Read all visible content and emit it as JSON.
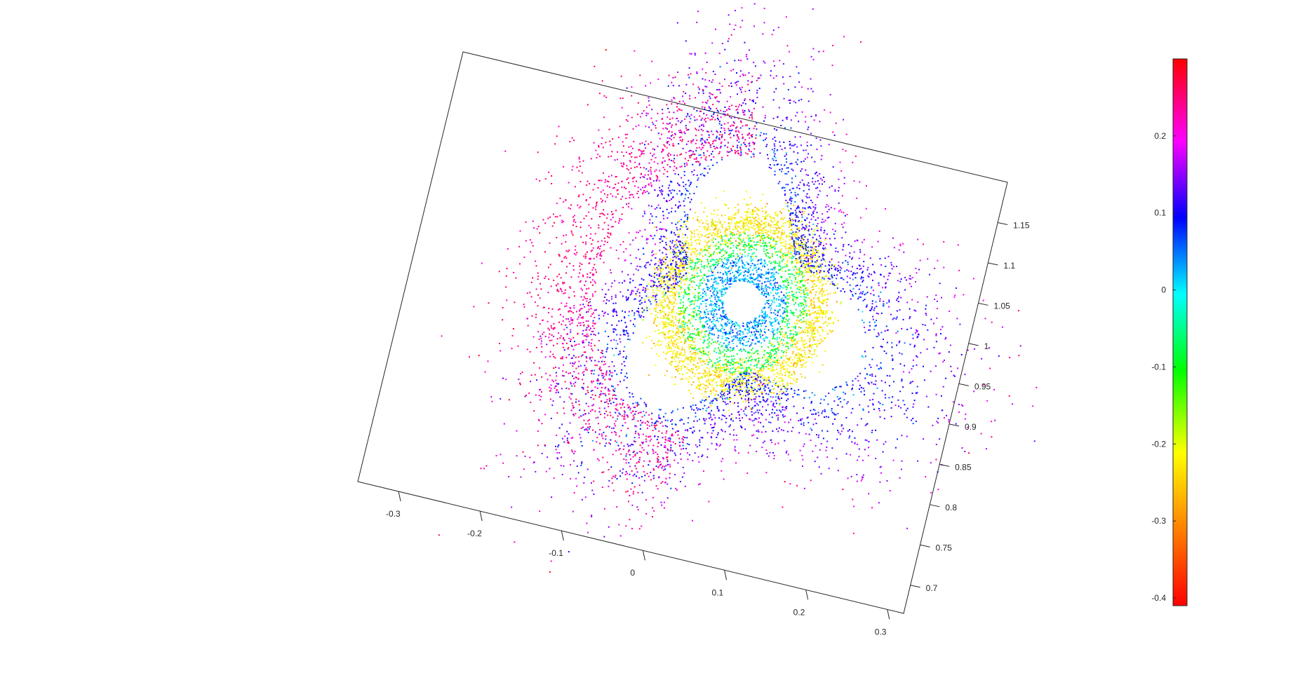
{
  "chart_data": {
    "type": "scatter",
    "title": "",
    "xlabel": "",
    "ylabel": "",
    "xlim": [
      -0.35,
      0.32
    ],
    "ylim": [
      0.665,
      1.2
    ],
    "x_ticks": [
      -0.3,
      -0.2,
      -0.1,
      0,
      0.1,
      0.2,
      0.3
    ],
    "x_tick_labels": [
      "-0.3",
      "-0.2",
      "-0.1",
      "0",
      "0.1",
      "0.2",
      "0.3"
    ],
    "y_ticks": [
      0.7,
      0.75,
      0.8,
      0.85,
      0.9,
      0.95,
      1,
      1.05,
      1.1,
      1.15
    ],
    "y_tick_labels": [
      "0.7",
      "0.75",
      "0.8",
      "0.85",
      "0.9",
      "0.95",
      "1",
      "1.05",
      "1.1",
      "1.15"
    ],
    "grid": false,
    "colormap": "hsv",
    "colorbar": {
      "limits": [
        -0.41,
        0.3
      ],
      "ticks": [
        -0.4,
        -0.3,
        -0.2,
        -0.1,
        0,
        0.1,
        0.2
      ],
      "tick_labels": [
        "-0.4",
        "-0.3",
        "-0.2",
        "-0.1",
        "0",
        "0.1",
        "0.2"
      ],
      "colors": [
        "#ff0000",
        "#ff8000",
        "#ffff00",
        "#00ff00",
        "#00ffff",
        "#0000ff",
        "#ff00ff",
        "#ff0040"
      ]
    },
    "point_cloud": {
      "description_of_structure": "dense magenta ring around a blue core with a hollow center, surrounded by cyan and green lobes, yellow/orange fringes",
      "approx_points": 9000,
      "ring_center": [
        0.045,
        0.985
      ],
      "ring_radius": 0.085,
      "ring_value": 0.22,
      "core_value": 0.05,
      "hole_radius": 0.022
    }
  }
}
